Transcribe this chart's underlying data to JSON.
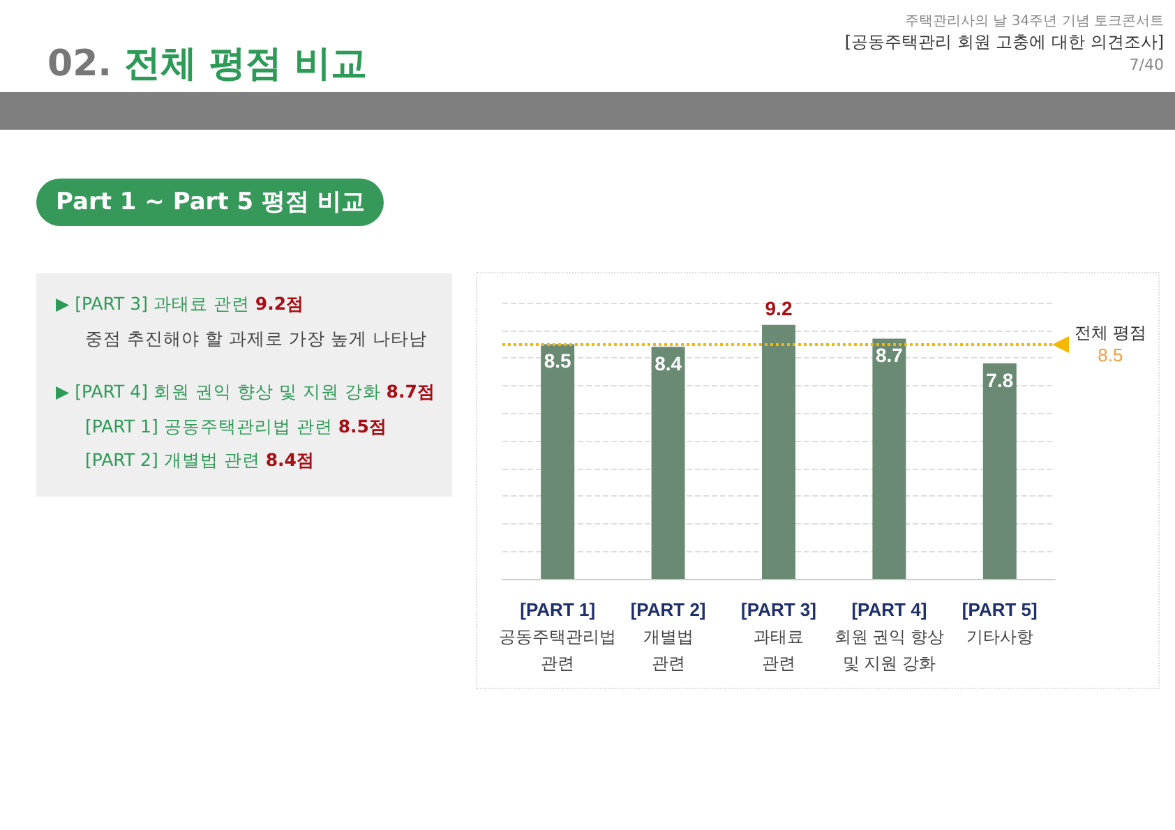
{
  "chart_data": {
    "type": "bar",
    "title": "02. 전체 평점 비교",
    "subtitle": "주택관리사의 날 34주년 기념 토크콘서트",
    "annotations": [
      "[공동주택관리 회원 고충에 대한 의견조사]",
      "7/40",
      "Part 1 ~ Part 5  평점 비교",
      "▶ [PART 3] 과태료 관련 9.2점",
      "중점 추진해야 할 과제로 가장 높게 나타남",
      "▶ [PART 4] 회원 권익 향상 및 지원 강화 8.7점",
      "[PART 1] 공동주택관리법 관련 8.5점",
      "[PART 2] 개별법 관련 8.4점"
    ],
    "categories": [
      "[PART 1]\n공동주택관리법\n관련",
      "[PART 2]\n개별법\n관련",
      "[PART 3]\n과태료\n관련",
      "[PART 4]\n회원 권익 향상\n및 지원 강화",
      "[PART 5]\n기타사항"
    ],
    "values": [
      8.5,
      8.4,
      9.2,
      8.7,
      7.8
    ],
    "color": "#6a8a74",
    "data_labels": true,
    "ylim": [
      0,
      10
    ],
    "yticks": [
      {
        "value": 0,
        "label": null
      },
      {
        "value": 1,
        "label": null
      },
      {
        "value": 2,
        "label": null
      },
      {
        "value": 3,
        "label": null
      },
      {
        "value": 4,
        "label": null
      },
      {
        "value": 5,
        "label": null
      },
      {
        "value": 6,
        "label": null
      },
      {
        "value": 7,
        "label": null
      },
      {
        "value": 8,
        "label": null
      },
      {
        "value": 9,
        "label": null
      },
      {
        "value": 10,
        "label": null
      }
    ],
    "tick_labels": "x",
    "grid": "y",
    "ref_lines": [
      {
        "axis": "y",
        "value": 8.5,
        "label": "전체 평점\n8.5",
        "color": "#f5b800",
        "line_style": "dotted"
      }
    ]
  }
}
